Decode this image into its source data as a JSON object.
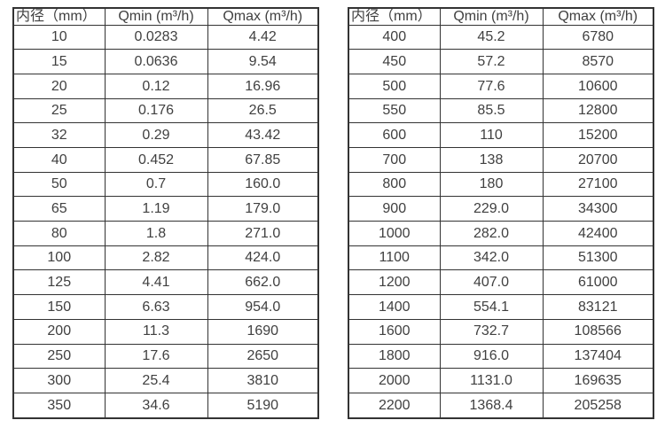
{
  "page": {
    "background_color": "#ffffff",
    "text_color": "#404040",
    "border_color": "#333333"
  },
  "tables": [
    {
      "name": "small-diameter-flow-table",
      "headers": [
        "内径（mm）",
        "Qmin (m³/h)",
        "Qmax (m³/h)"
      ],
      "rows": [
        [
          "10",
          "0.0283",
          "4.42"
        ],
        [
          "15",
          "0.0636",
          "9.54"
        ],
        [
          "20",
          "0.12",
          "16.96"
        ],
        [
          "25",
          "0.176",
          "26.5"
        ],
        [
          "32",
          "0.29",
          "43.42"
        ],
        [
          "40",
          "0.452",
          "67.85"
        ],
        [
          "50",
          "0.7",
          "160.0"
        ],
        [
          "65",
          "1.19",
          "179.0"
        ],
        [
          "80",
          "1.8",
          "271.0"
        ],
        [
          "100",
          "2.82",
          "424.0"
        ],
        [
          "125",
          "4.41",
          "662.0"
        ],
        [
          "150",
          "6.63",
          "954.0"
        ],
        [
          "200",
          "11.3",
          "1690"
        ],
        [
          "250",
          "17.6",
          "2650"
        ],
        [
          "300",
          "25.4",
          "3810"
        ],
        [
          "350",
          "34.6",
          "5190"
        ]
      ]
    },
    {
      "name": "large-diameter-flow-table",
      "headers": [
        "内径（mm）",
        "Qmin (m³/h)",
        "Qmax (m³/h)"
      ],
      "rows": [
        [
          "400",
          "45.2",
          "6780"
        ],
        [
          "450",
          "57.2",
          "8570"
        ],
        [
          "500",
          "77.6",
          "10600"
        ],
        [
          "550",
          "85.5",
          "12800"
        ],
        [
          "600",
          "110",
          "15200"
        ],
        [
          "700",
          "138",
          "20700"
        ],
        [
          "800",
          "180",
          "27100"
        ],
        [
          "900",
          "229.0",
          "34300"
        ],
        [
          "1000",
          "282.0",
          "42400"
        ],
        [
          "1100",
          "342.0",
          "51300"
        ],
        [
          "1200",
          "407.0",
          "61000"
        ],
        [
          "1400",
          "554.1",
          "83121"
        ],
        [
          "1600",
          "732.7",
          "108566"
        ],
        [
          "1800",
          "916.0",
          "137404"
        ],
        [
          "2000",
          "1131.0",
          "169635"
        ],
        [
          "2200",
          "1368.4",
          "205258"
        ]
      ]
    }
  ]
}
